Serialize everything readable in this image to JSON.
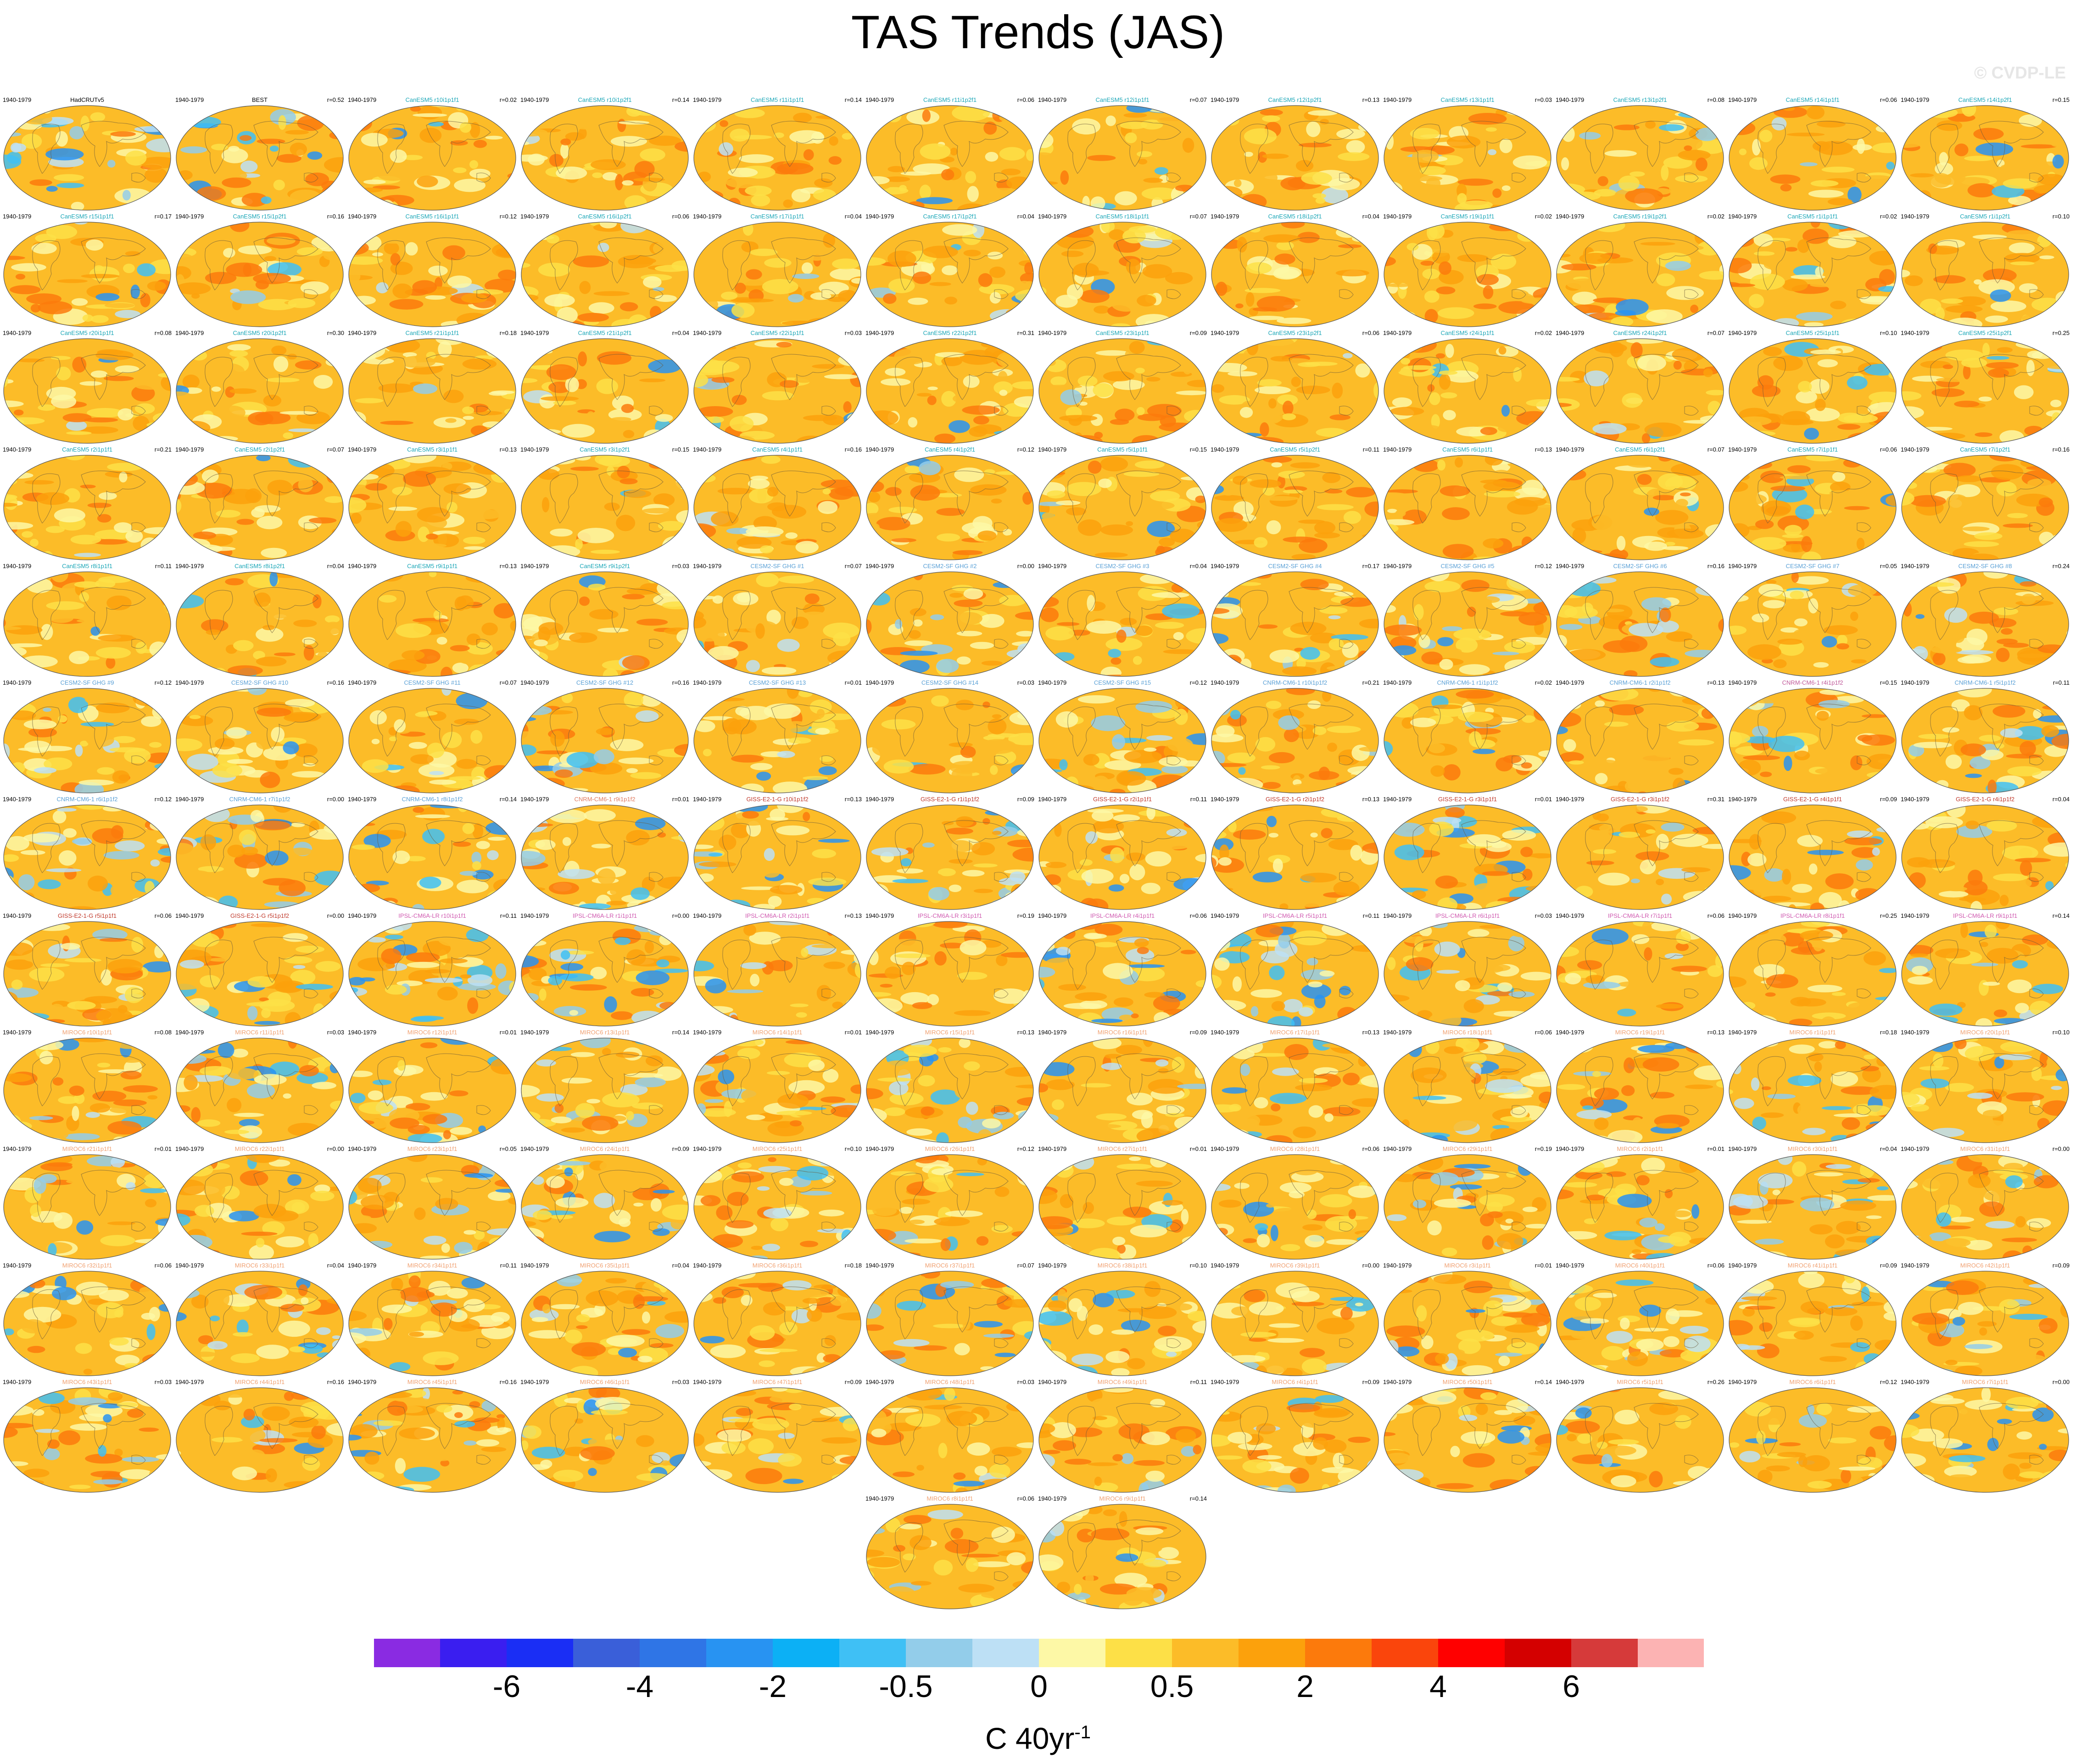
{
  "chart_data": {
    "type": "heatmap",
    "title": "TAS Trends (JAS)",
    "watermark": "© CVDP-LE",
    "period": "1940-1979",
    "panels": [
      {
        "name": "HadCRUTv5",
        "r": "",
        "name_color": "#000000",
        "cool": 0.5
      },
      {
        "name": "BEST",
        "r": "r=0.52",
        "name_color": "#000000",
        "cool": 0.45
      },
      {
        "name": "CanESM5 r10i1p1f1",
        "r": "r=0.02",
        "name_color": "#1aa6b7",
        "cool": 0.05
      },
      {
        "name": "CanESM5 r10i1p2f1",
        "r": "r=0.14",
        "name_color": "#1aa6b7",
        "cool": 0.1
      },
      {
        "name": "CanESM5 r11i1p1f1",
        "r": "r=0.14",
        "name_color": "#1aa6b7",
        "cool": 0.08
      },
      {
        "name": "CanESM5 r11i1p2f1",
        "r": "r=0.06",
        "name_color": "#1aa6b7",
        "cool": 0.05
      },
      {
        "name": "CanESM5 r12i1p1f1",
        "r": "r=0.07",
        "name_color": "#1aa6b7",
        "cool": 0.1
      },
      {
        "name": "CanESM5 r12i1p2f1",
        "r": "r=0.13",
        "name_color": "#1aa6b7",
        "cool": 0.06
      },
      {
        "name": "CanESM5 r13i1p1f1",
        "r": "r=0.03",
        "name_color": "#1aa6b7",
        "cool": 0.07
      },
      {
        "name": "CanESM5 r13i1p2f1",
        "r": "r=0.08",
        "name_color": "#1aa6b7",
        "cool": 0.12
      },
      {
        "name": "CanESM5 r14i1p1f1",
        "r": "r=0.06",
        "name_color": "#1aa6b7",
        "cool": 0.15
      },
      {
        "name": "CanESM5 r14i1p2f1",
        "r": "r=0.15",
        "name_color": "#1aa6b7",
        "cool": 0.06
      },
      {
        "name": "CanESM5 r15i1p1f1",
        "r": "r=0.17",
        "name_color": "#1aa6b7",
        "cool": 0.06
      },
      {
        "name": "CanESM5 r15i1p2f1",
        "r": "r=0.16",
        "name_color": "#1aa6b7",
        "cool": 0.07
      },
      {
        "name": "CanESM5 r16i1p1f1",
        "r": "r=0.12",
        "name_color": "#1aa6b7",
        "cool": 0.05
      },
      {
        "name": "CanESM5 r16i1p2f1",
        "r": "r=0.06",
        "name_color": "#1aa6b7",
        "cool": 0.1
      },
      {
        "name": "CanESM5 r17i1p1f1",
        "r": "r=0.04",
        "name_color": "#1aa6b7",
        "cool": 0.08
      },
      {
        "name": "CanESM5 r17i1p2f1",
        "r": "r=0.04",
        "name_color": "#1aa6b7",
        "cool": 0.06
      },
      {
        "name": "CanESM5 r18i1p1f1",
        "r": "r=0.07",
        "name_color": "#1aa6b7",
        "cool": 0.07
      },
      {
        "name": "CanESM5 r18i1p2f1",
        "r": "r=0.04",
        "name_color": "#1aa6b7",
        "cool": 0.05
      },
      {
        "name": "CanESM5 r19i1p1f1",
        "r": "r=0.02",
        "name_color": "#1aa6b7",
        "cool": 0.06
      },
      {
        "name": "CanESM5 r19i1p2f1",
        "r": "r=0.02",
        "name_color": "#1aa6b7",
        "cool": 0.1
      },
      {
        "name": "CanESM5 r1i1p1f1",
        "r": "r=0.02",
        "name_color": "#1aa6b7",
        "cool": 0.12
      },
      {
        "name": "CanESM5 r1i1p2f1",
        "r": "r=0.10",
        "name_color": "#1aa6b7",
        "cool": 0.08
      },
      {
        "name": "CanESM5 r20i1p1f1",
        "r": "r=0.08",
        "name_color": "#1aa6b7",
        "cool": 0.06
      },
      {
        "name": "CanESM5 r20i1p2f1",
        "r": "r=0.30",
        "name_color": "#1aa6b7",
        "cool": 0.07
      },
      {
        "name": "CanESM5 r21i1p1f1",
        "r": "r=0.18",
        "name_color": "#1aa6b7",
        "cool": 0.05
      },
      {
        "name": "CanESM5 r21i1p2f1",
        "r": "r=0.04",
        "name_color": "#1aa6b7",
        "cool": 0.12
      },
      {
        "name": "CanESM5 r22i1p1f1",
        "r": "r=0.03",
        "name_color": "#1aa6b7",
        "cool": 0.08
      },
      {
        "name": "CanESM5 r22i1p2f1",
        "r": "r=0.31",
        "name_color": "#1aa6b7",
        "cool": 0.05
      },
      {
        "name": "CanESM5 r23i1p1f1",
        "r": "r=0.09",
        "name_color": "#1aa6b7",
        "cool": 0.06
      },
      {
        "name": "CanESM5 r23i1p2f1",
        "r": "r=0.06",
        "name_color": "#1aa6b7",
        "cool": 0.08
      },
      {
        "name": "CanESM5 r24i1p1f1",
        "r": "r=0.02",
        "name_color": "#1aa6b7",
        "cool": 0.1
      },
      {
        "name": "CanESM5 r24i1p2f1",
        "r": "r=0.07",
        "name_color": "#1aa6b7",
        "cool": 0.06
      },
      {
        "name": "CanESM5 r25i1p1f1",
        "r": "r=0.10",
        "name_color": "#1aa6b7",
        "cool": 0.12
      },
      {
        "name": "CanESM5 r25i1p2f1",
        "r": "r=0.25",
        "name_color": "#1aa6b7",
        "cool": 0.07
      },
      {
        "name": "CanESM5 r2i1p1f1",
        "r": "r=0.21",
        "name_color": "#1aa6b7",
        "cool": 0.05
      },
      {
        "name": "CanESM5 r2i1p2f1",
        "r": "r=0.07",
        "name_color": "#1aa6b7",
        "cool": 0.06
      },
      {
        "name": "CanESM5 r3i1p1f1",
        "r": "r=0.13",
        "name_color": "#1aa6b7",
        "cool": 0.05
      },
      {
        "name": "CanESM5 r3i1p2f1",
        "r": "r=0.15",
        "name_color": "#1aa6b7",
        "cool": 0.1
      },
      {
        "name": "CanESM5 r4i1p1f1",
        "r": "r=0.16",
        "name_color": "#1aa6b7",
        "cool": 0.06
      },
      {
        "name": "CanESM5 r4i1p2f1",
        "r": "r=0.12",
        "name_color": "#1aa6b7",
        "cool": 0.04
      },
      {
        "name": "CanESM5 r5i1p1f1",
        "r": "r=0.15",
        "name_color": "#1aa6b7",
        "cool": 0.05
      },
      {
        "name": "CanESM5 r5i1p2f1",
        "r": "r=0.11",
        "name_color": "#1aa6b7",
        "cool": 0.04
      },
      {
        "name": "CanESM5 r6i1p1f1",
        "r": "r=0.13",
        "name_color": "#1aa6b7",
        "cool": 0.07
      },
      {
        "name": "CanESM5 r6i1p2f1",
        "r": "r=0.07",
        "name_color": "#1aa6b7",
        "cool": 0.06
      },
      {
        "name": "CanESM5 r7i1p1f1",
        "r": "r=0.06",
        "name_color": "#1aa6b7",
        "cool": 0.1
      },
      {
        "name": "CanESM5 r7i1p2f1",
        "r": "r=0.16",
        "name_color": "#1aa6b7",
        "cool": 0.06
      },
      {
        "name": "CanESM5 r8i1p1f1",
        "r": "r=0.11",
        "name_color": "#1aa6b7",
        "cool": 0.06
      },
      {
        "name": "CanESM5 r8i1p2f1",
        "r": "r=0.04",
        "name_color": "#1aa6b7",
        "cool": 0.08
      },
      {
        "name": "CanESM5 r9i1p1f1",
        "r": "r=0.13",
        "name_color": "#1aa6b7",
        "cool": 0.07
      },
      {
        "name": "CanESM5 r9i1p2f1",
        "r": "r=0.03",
        "name_color": "#1aa6b7",
        "cool": 0.06
      },
      {
        "name": "CESM2-SF GHG #1",
        "r": "r=0.07",
        "name_color": "#5aa0d6",
        "cool": 0.12
      },
      {
        "name": "CESM2-SF GHG #2",
        "r": "r=0.00",
        "name_color": "#5aa0d6",
        "cool": 0.15
      },
      {
        "name": "CESM2-SF GHG #3",
        "r": "r=0.04",
        "name_color": "#5aa0d6",
        "cool": 0.14
      },
      {
        "name": "CESM2-SF GHG #4",
        "r": "r=0.17",
        "name_color": "#5aa0d6",
        "cool": 0.3
      },
      {
        "name": "CESM2-SF GHG #5",
        "r": "r=0.12",
        "name_color": "#5aa0d6",
        "cool": 0.22
      },
      {
        "name": "CESM2-SF GHG #6",
        "r": "r=0.16",
        "name_color": "#5aa0d6",
        "cool": 0.18
      },
      {
        "name": "CESM2-SF GHG #7",
        "r": "r=0.05",
        "name_color": "#5aa0d6",
        "cool": 0.16
      },
      {
        "name": "CESM2-SF GHG #8",
        "r": "r=0.24",
        "name_color": "#5aa0d6",
        "cool": 0.14
      },
      {
        "name": "CESM2-SF GHG #9",
        "r": "r=0.12",
        "name_color": "#5aa0d6",
        "cool": 0.12
      },
      {
        "name": "CESM2-SF GHG #10",
        "r": "r=0.16",
        "name_color": "#5aa0d6",
        "cool": 0.1
      },
      {
        "name": "CESM2-SF GHG #11",
        "r": "r=0.07",
        "name_color": "#5aa0d6",
        "cool": 0.2
      },
      {
        "name": "CESM2-SF GHG #12",
        "r": "r=0.16",
        "name_color": "#5aa0d6",
        "cool": 0.22
      },
      {
        "name": "CESM2-SF GHG #13",
        "r": "r=0.01",
        "name_color": "#5aa0d6",
        "cool": 0.15
      },
      {
        "name": "CESM2-SF GHG #14",
        "r": "r=0.03",
        "name_color": "#5aa0d6",
        "cool": 0.1
      },
      {
        "name": "CESM2-SF GHG #15",
        "r": "r=0.12",
        "name_color": "#5aa0d6",
        "cool": 0.16
      },
      {
        "name": "CNRM-CM6-1 r10i1p1f2",
        "r": "r=0.21",
        "name_color": "#5aa0d6",
        "cool": 0.12
      },
      {
        "name": "CNRM-CM6-1 r1i1p1f2",
        "r": "r=0.02",
        "name_color": "#5aa0d6",
        "cool": 0.14
      },
      {
        "name": "CNRM-CM6-1 r2i1p1f2",
        "r": "r=0.13",
        "name_color": "#5aa0d6",
        "cool": 0.12
      },
      {
        "name": "CNRM-CM6-1 r4i1p1f2",
        "r": "r=0.15",
        "name_color": "#c05a9a",
        "cool": 0.08
      },
      {
        "name": "CNRM-CM6-1 r5i1p1f2",
        "r": "r=0.11",
        "name_color": "#5aa0d6",
        "cool": 0.2
      },
      {
        "name": "CNRM-CM6-1 r6i1p1f2",
        "r": "r=0.12",
        "name_color": "#5aa0d6",
        "cool": 0.3
      },
      {
        "name": "CNRM-CM6-1 r7i1p1f2",
        "r": "r=0.00",
        "name_color": "#5aa0d6",
        "cool": 0.25
      },
      {
        "name": "CNRM-CM6-1 r8i1p1f2",
        "r": "r=0.14",
        "name_color": "#5aa0d6",
        "cool": 0.35
      },
      {
        "name": "CNRM-CM6-1 r9i1p1f2",
        "r": "r=0.01",
        "name_color": "#e07a5f",
        "cool": 0.22
      },
      {
        "name": "GISS-E2-1-G r10i1p1f2",
        "r": "r=0.13",
        "name_color": "#c0392b",
        "cool": 0.4
      },
      {
        "name": "GISS-E2-1-G r1i1p1f2",
        "r": "r=0.09",
        "name_color": "#c0392b",
        "cool": 0.25
      },
      {
        "name": "GISS-E2-1-G r2i1p1f1",
        "r": "r=0.11",
        "name_color": "#c0392b",
        "cool": 0.35
      },
      {
        "name": "GISS-E2-1-G r2i1p1f2",
        "r": "r=0.13",
        "name_color": "#c0392b",
        "cool": 0.22
      },
      {
        "name": "GISS-E2-1-G r3i1p1f1",
        "r": "r=0.01",
        "name_color": "#c0392b",
        "cool": 0.35
      },
      {
        "name": "GISS-E2-1-G r3i1p1f2",
        "r": "r=0.31",
        "name_color": "#c0392b",
        "cool": 0.2
      },
      {
        "name": "GISS-E2-1-G r4i1p1f1",
        "r": "r=0.09",
        "name_color": "#c0392b",
        "cool": 0.3
      },
      {
        "name": "GISS-E2-1-G r4i1p1f2",
        "r": "r=0.04",
        "name_color": "#c0392b",
        "cool": 0.15
      },
      {
        "name": "GISS-E2-1-G r5i1p1f1",
        "r": "r=0.06",
        "name_color": "#c0392b",
        "cool": 0.18
      },
      {
        "name": "GISS-E2-1-G r5i1p1f2",
        "r": "r=0.00",
        "name_color": "#c0392b",
        "cool": 0.3
      },
      {
        "name": "IPSL-CM6A-LR r10i1p1f1",
        "r": "r=0.11",
        "name_color": "#d05ab0",
        "cool": 0.45
      },
      {
        "name": "IPSL-CM6A-LR r1i1p1f1",
        "r": "r=0.00",
        "name_color": "#d05ab0",
        "cool": 0.45
      },
      {
        "name": "IPSL-CM6A-LR r2i1p1f1",
        "r": "r=0.13",
        "name_color": "#d05ab0",
        "cool": 0.4
      },
      {
        "name": "IPSL-CM6A-LR r3i1p1f1",
        "r": "r=0.19",
        "name_color": "#d05ab0",
        "cool": 0.02
      },
      {
        "name": "IPSL-CM6A-LR r4i1p1f1",
        "r": "r=0.06",
        "name_color": "#d05ab0",
        "cool": 0.35
      },
      {
        "name": "IPSL-CM6A-LR r5i1p1f1",
        "r": "r=0.11",
        "name_color": "#d05ab0",
        "cool": 0.35
      },
      {
        "name": "IPSL-CM6A-LR r6i1p1f1",
        "r": "r=0.03",
        "name_color": "#d05ab0",
        "cool": 0.45
      },
      {
        "name": "IPSL-CM6A-LR r7i1p1f1",
        "r": "r=0.06",
        "name_color": "#d05ab0",
        "cool": 0.2
      },
      {
        "name": "IPSL-CM6A-LR r8i1p1f1",
        "r": "r=0.25",
        "name_color": "#d05ab0",
        "cool": 0.08
      },
      {
        "name": "IPSL-CM6A-LR r9i1p1f1",
        "r": "r=0.14",
        "name_color": "#d05ab0",
        "cool": 0.35
      },
      {
        "name": "MIROC6 r10i1p1f1",
        "r": "r=0.08",
        "name_color": "#f0a070",
        "cool": 0.25
      },
      {
        "name": "MIROC6 r11i1p1f1",
        "r": "r=0.03",
        "name_color": "#f0a070",
        "cool": 0.4
      },
      {
        "name": "MIROC6 r12i1p1f1",
        "r": "r=0.01",
        "name_color": "#f0a070",
        "cool": 0.3
      },
      {
        "name": "MIROC6 r13i1p1f1",
        "r": "r=0.14",
        "name_color": "#f0a070",
        "cool": 0.38
      },
      {
        "name": "MIROC6 r14i1p1f1",
        "r": "r=0.01",
        "name_color": "#f0a070",
        "cool": 0.3
      },
      {
        "name": "MIROC6 r15i1p1f1",
        "r": "r=0.13",
        "name_color": "#f0a070",
        "cool": 0.32
      },
      {
        "name": "MIROC6 r16i1p1f1",
        "r": "r=0.09",
        "name_color": "#f0a070",
        "cool": 0.28
      },
      {
        "name": "MIROC6 r17i1p1f1",
        "r": "r=0.13",
        "name_color": "#f0a070",
        "cool": 0.25
      },
      {
        "name": "MIROC6 r18i1p1f1",
        "r": "r=0.06",
        "name_color": "#f0a070",
        "cool": 0.35
      },
      {
        "name": "MIROC6 r19i1p1f1",
        "r": "r=0.13",
        "name_color": "#f0a070",
        "cool": 0.3
      },
      {
        "name": "MIROC6 r1i1p1f1",
        "r": "r=0.18",
        "name_color": "#f0a070",
        "cool": 0.35
      },
      {
        "name": "MIROC6 r20i1p1f1",
        "r": "r=0.10",
        "name_color": "#f0a070",
        "cool": 0.25
      },
      {
        "name": "MIROC6 r21i1p1f1",
        "r": "r=0.01",
        "name_color": "#f0a070",
        "cool": 0.25
      },
      {
        "name": "MIROC6 r22i1p1f1",
        "r": "r=0.00",
        "name_color": "#f0a070",
        "cool": 0.28
      },
      {
        "name": "MIROC6 r23i1p1f1",
        "r": "r=0.05",
        "name_color": "#f0a070",
        "cool": 0.3
      },
      {
        "name": "MIROC6 r24i1p1f1",
        "r": "r=0.09",
        "name_color": "#f0a070",
        "cool": 0.4
      },
      {
        "name": "MIROC6 r25i1p1f1",
        "r": "r=0.10",
        "name_color": "#f0a070",
        "cool": 0.35
      },
      {
        "name": "MIROC6 r26i1p1f1",
        "r": "r=0.12",
        "name_color": "#f0a070",
        "cool": 0.3
      },
      {
        "name": "MIROC6 r27i1p1f1",
        "r": "r=0.01",
        "name_color": "#f0a070",
        "cool": 0.25
      },
      {
        "name": "MIROC6 r28i1p1f1",
        "r": "r=0.06",
        "name_color": "#f0a070",
        "cool": 0.3
      },
      {
        "name": "MIROC6 r29i1p1f1",
        "r": "r=0.19",
        "name_color": "#f0a070",
        "cool": 0.32
      },
      {
        "name": "MIROC6 r2i1p1f1",
        "r": "r=0.01",
        "name_color": "#f0a070",
        "cool": 0.3
      },
      {
        "name": "MIROC6 r30i1p1f1",
        "r": "r=0.04",
        "name_color": "#f0a070",
        "cool": 0.3
      },
      {
        "name": "MIROC6 r31i1p1f1",
        "r": "r=0.00",
        "name_color": "#f0a070",
        "cool": 0.28
      },
      {
        "name": "MIROC6 r32i1p1f1",
        "r": "r=0.06",
        "name_color": "#f0a070",
        "cool": 0.25
      },
      {
        "name": "MIROC6 r33i1p1f1",
        "r": "r=0.04",
        "name_color": "#f0a070",
        "cool": 0.22
      },
      {
        "name": "MIROC6 r34i1p1f1",
        "r": "r=0.11",
        "name_color": "#f0a070",
        "cool": 0.2
      },
      {
        "name": "MIROC6 r35i1p1f1",
        "r": "r=0.04",
        "name_color": "#f0a070",
        "cool": 0.25
      },
      {
        "name": "MIROC6 r36i1p1f1",
        "r": "r=0.18",
        "name_color": "#f0a070",
        "cool": 0.2
      },
      {
        "name": "MIROC6 r37i1p1f1",
        "r": "r=0.07",
        "name_color": "#f0a070",
        "cool": 0.28
      },
      {
        "name": "MIROC6 r38i1p1f1",
        "r": "r=0.10",
        "name_color": "#f0a070",
        "cool": 0.22
      },
      {
        "name": "MIROC6 r39i1p1f1",
        "r": "r=0.00",
        "name_color": "#f0a070",
        "cool": 0.2
      },
      {
        "name": "MIROC6 r3i1p1f1",
        "r": "r=0.01",
        "name_color": "#f0a070",
        "cool": 0.25
      },
      {
        "name": "MIROC6 r40i1p1f1",
        "r": "r=0.06",
        "name_color": "#f0a070",
        "cool": 0.3
      },
      {
        "name": "MIROC6 r41i1p1f1",
        "r": "r=0.09",
        "name_color": "#f0a070",
        "cool": 0.25
      },
      {
        "name": "MIROC6 r42i1p1f1",
        "r": "r=0.09",
        "name_color": "#f0a070",
        "cool": 0.22
      },
      {
        "name": "MIROC6 r43i1p1f1",
        "r": "r=0.03",
        "name_color": "#f0a070",
        "cool": 0.28
      },
      {
        "name": "MIROC6 r44i1p1f1",
        "r": "r=0.16",
        "name_color": "#f0a070",
        "cool": 0.12
      },
      {
        "name": "MIROC6 r45i1p1f1",
        "r": "r=0.16",
        "name_color": "#f0a070",
        "cool": 0.18
      },
      {
        "name": "MIROC6 r46i1p1f1",
        "r": "r=0.03",
        "name_color": "#f0a070",
        "cool": 0.2
      },
      {
        "name": "MIROC6 r47i1p1f1",
        "r": "r=0.09",
        "name_color": "#f0a070",
        "cool": 0.15
      },
      {
        "name": "MIROC6 r48i1p1f1",
        "r": "r=0.03",
        "name_color": "#f0a070",
        "cool": 0.22
      },
      {
        "name": "MIROC6 r49i1p1f1",
        "r": "r=0.11",
        "name_color": "#f0a070",
        "cool": 0.18
      },
      {
        "name": "MIROC6 r4i1p1f1",
        "r": "r=0.09",
        "name_color": "#f0a070",
        "cool": 0.2
      },
      {
        "name": "MIROC6 r50i1p1f1",
        "r": "r=0.14",
        "name_color": "#f0a070",
        "cool": 0.22
      },
      {
        "name": "MIROC6 r5i1p1f1",
        "r": "r=0.26",
        "name_color": "#f0a070",
        "cool": 0.25
      },
      {
        "name": "MIROC6 r6i1p1f1",
        "r": "r=0.12",
        "name_color": "#f0a070",
        "cool": 0.2
      },
      {
        "name": "MIROC6 r7i1p1f1",
        "r": "r=0.00",
        "name_color": "#f0a070",
        "cool": 0.3
      },
      {
        "name": "MIROC6 r8i1p1f1",
        "r": "r=0.06",
        "name_color": "#f0a070",
        "cool": 0.15
      },
      {
        "name": "MIROC6 r9i1p1f1",
        "r": "r=0.14",
        "name_color": "#f0a070",
        "cool": 0.25
      }
    ],
    "colorbar": {
      "colors": [
        "#8a2be2",
        "#3a1ef0",
        "#1a2ef5",
        "#3a5fd9",
        "#2f75e6",
        "#2893f2",
        "#0cb0f5",
        "#3fc0f5",
        "#93cdea",
        "#bde0f5",
        "#fdf8a6",
        "#fde047",
        "#fcbc28",
        "#fca10c",
        "#fc7a0c",
        "#fa450c",
        "#ff0000",
        "#d40000",
        "#d63a3a",
        "#fcb3b3"
      ],
      "tick_labels": [
        "-6",
        "-4",
        "-2",
        "-0.5",
        "0",
        "0.5",
        "2",
        "4",
        "6"
      ],
      "tick_boundaries": [
        2,
        4,
        6,
        8,
        10,
        12,
        14,
        16,
        18
      ]
    },
    "units": "C 40yr",
    "units_exponent": "-1"
  }
}
